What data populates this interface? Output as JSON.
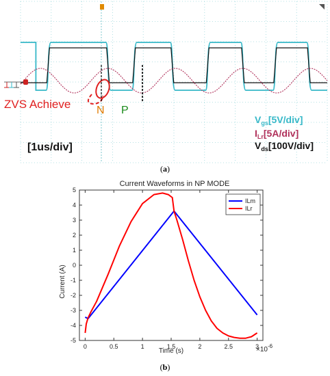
{
  "chart_data": [
    {
      "type": "line",
      "panel": "(a)",
      "annotations": {
        "zvs": "ZVS Achieve",
        "n": "N",
        "p": "P",
        "timebase": "[1us/div]"
      },
      "legend": [
        {
          "main": "V",
          "sub": "gs",
          "rest": "[5V/div]",
          "color": "#36b8c8"
        },
        {
          "main": "I",
          "sub": "Lr",
          "rest": "[5A/div]",
          "color": "#b0305a"
        },
        {
          "main": "V",
          "sub": "ds",
          "rest": "[100V/div]",
          "color": "#111111"
        }
      ],
      "x_divisions": 10,
      "vgs_edges_div": [
        {
          "t": 0.9,
          "rise": true
        },
        {
          "t": 2.85,
          "rise": false
        },
        {
          "t": 3.7,
          "rise": true
        },
        {
          "t": 4.95,
          "rise": false
        },
        {
          "t": 6.1,
          "rise": true
        },
        {
          "t": 7.25,
          "rise": false
        },
        {
          "t": 8.3,
          "rise": true
        },
        {
          "t": 9.4,
          "rise": false
        }
      ]
    },
    {
      "type": "line",
      "panel": "(b)",
      "title": "Current Waveforms in NP MODE",
      "xlabel": "Time (s)",
      "ylabel": "Current (A)",
      "x_multiplier": "×10",
      "x_exponent": "-6",
      "xlim": [
        -0.1,
        3.1
      ],
      "ylim": [
        -5,
        5
      ],
      "xticks": [
        "0",
        "0.5",
        "1",
        "1.5",
        "2",
        "2.5",
        "3"
      ],
      "yticks": [
        "-5",
        "-4",
        "-3",
        "-2",
        "-1",
        "0",
        "1",
        "2",
        "3",
        "4",
        "5"
      ],
      "legend_position": "top-right",
      "series": [
        {
          "name": "ILm",
          "color": "#0000ff",
          "x": [
            0.0,
            0.05,
            1.55,
            3.0
          ],
          "y": [
            -3.45,
            -3.55,
            3.6,
            -3.3
          ]
        },
        {
          "name": "ILr",
          "color": "#ff0000",
          "x": [
            0.0,
            0.02,
            0.05,
            0.1,
            0.2,
            0.4,
            0.6,
            0.8,
            1.0,
            1.2,
            1.35,
            1.45,
            1.52,
            1.55,
            1.6,
            1.7,
            1.8,
            1.9,
            2.0,
            2.1,
            2.2,
            2.3,
            2.4,
            2.5,
            2.6,
            2.7,
            2.8,
            2.9,
            3.0
          ],
          "y": [
            -4.5,
            -3.9,
            -3.5,
            -3.1,
            -2.4,
            -0.6,
            1.3,
            2.9,
            4.1,
            4.7,
            4.8,
            4.7,
            4.5,
            3.6,
            3.0,
            1.7,
            0.3,
            -1.0,
            -2.1,
            -3.0,
            -3.7,
            -4.2,
            -4.5,
            -4.7,
            -4.8,
            -4.85,
            -4.85,
            -4.75,
            -4.5
          ]
        }
      ]
    }
  ],
  "captions": {
    "a": "a",
    "b": "b"
  }
}
